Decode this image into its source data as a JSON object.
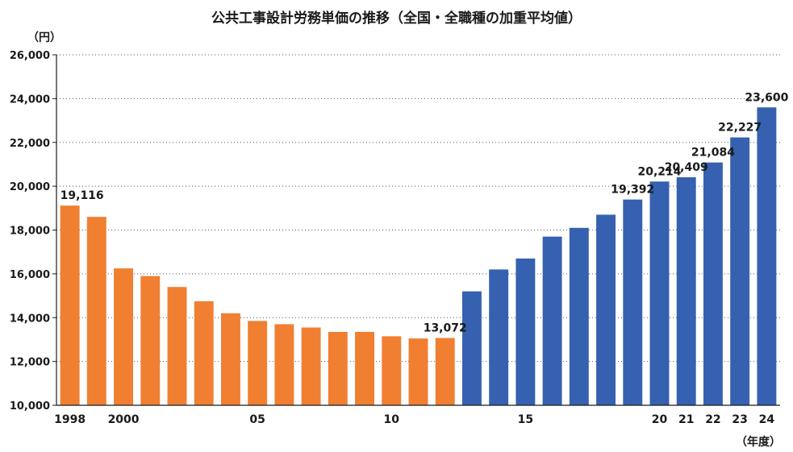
{
  "chart_data": {
    "type": "bar",
    "title": "公共工事設計労務単価の推移（全国・全職種の加重平均値）",
    "ylabel": "（円）",
    "xlabel": "（年度）",
    "ylim": [
      10000,
      26000
    ],
    "yticks": [
      "10,000",
      "12,000",
      "14,000",
      "16,000",
      "18,000",
      "20,000",
      "22,000",
      "24,000",
      "26,000"
    ],
    "grid": true,
    "categories": [
      "1998",
      "1999",
      "2000",
      "2001",
      "2002",
      "2003",
      "2004",
      "2005",
      "2006",
      "2007",
      "2008",
      "2009",
      "2010",
      "2011",
      "2012",
      "2013",
      "2014",
      "2015",
      "2016",
      "2017",
      "2018",
      "2019",
      "2020",
      "2021",
      "2022",
      "2023",
      "2024"
    ],
    "tick_labels": [
      "1998",
      "",
      "2000",
      "",
      "",
      "",
      "",
      "05",
      "",
      "",
      "",
      "",
      "10",
      "",
      "",
      "",
      "",
      "15",
      "",
      "",
      "",
      "",
      "20",
      "21",
      "22",
      "23",
      "24"
    ],
    "values": [
      19116,
      18600,
      16250,
      15900,
      15400,
      14750,
      14200,
      13850,
      13700,
      13550,
      13350,
      13350,
      13150,
      13050,
      13072,
      15200,
      16200,
      16700,
      17700,
      18100,
      18700,
      19392,
      20214,
      20409,
      21084,
      22227,
      23600
    ],
    "data_labels": [
      "19,116",
      "",
      "",
      "",
      "",
      "",
      "",
      "",
      "",
      "",
      "",
      "",
      "",
      "",
      "13,072",
      "",
      "",
      "",
      "",
      "",
      "",
      "19,392",
      "20,214",
      "20,409",
      "21,084",
      "22,227",
      "23,600"
    ],
    "bar_colors": [
      "#f07f32",
      "#f07f32",
      "#f07f32",
      "#f07f32",
      "#f07f32",
      "#f07f32",
      "#f07f32",
      "#f07f32",
      "#f07f32",
      "#f07f32",
      "#f07f32",
      "#f07f32",
      "#f07f32",
      "#f07f32",
      "#f07f32",
      "#3561b0",
      "#3561b0",
      "#3561b0",
      "#3561b0",
      "#3561b0",
      "#3561b0",
      "#3561b0",
      "#3561b0",
      "#3561b0",
      "#3561b0",
      "#3561b0",
      "#3561b0"
    ]
  }
}
